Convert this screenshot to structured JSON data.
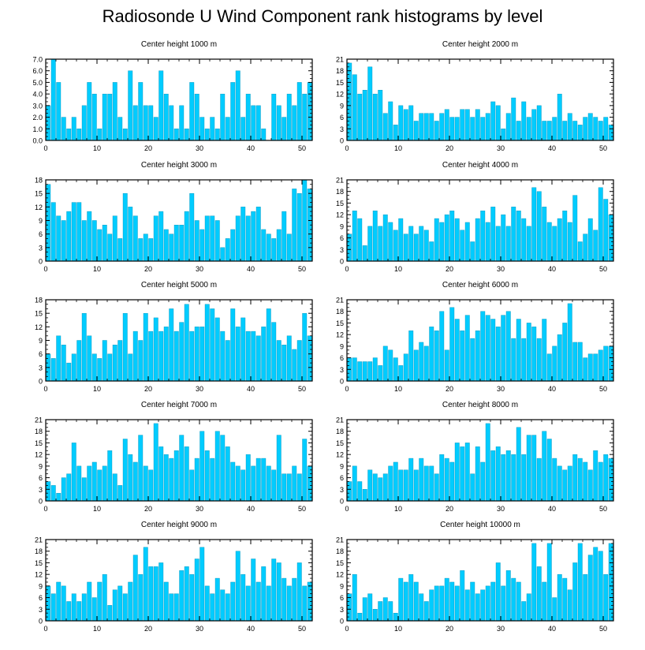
{
  "title": "Radiosonde U Wind Component rank histograms by level",
  "colors": {
    "bar": "#00ccff",
    "bar_edge": "#0090b8",
    "axis": "#000000"
  },
  "chart_data": [
    {
      "type": "bar",
      "title": "Center height 1000 m",
      "xlim": [
        0,
        52
      ],
      "ylim": [
        0,
        7
      ],
      "yticks": [
        0,
        1,
        2,
        3,
        4,
        5,
        6,
        7
      ],
      "ytick_labels": [
        "0.0",
        "1.0",
        "2.0",
        "3.0",
        "4.0",
        "5.0",
        "6.0",
        "7.0"
      ],
      "xticks": [
        0,
        10,
        20,
        30,
        40,
        50
      ],
      "xtick_labels": [
        "0",
        "10",
        "20",
        "30",
        "40",
        "50"
      ],
      "values": [
        3,
        7,
        5,
        2,
        1,
        2,
        1,
        3,
        5,
        4,
        1,
        4,
        4,
        5,
        2,
        1,
        6,
        3,
        5,
        3,
        3,
        2,
        6,
        4,
        3,
        1,
        3,
        1,
        5,
        4,
        2,
        1,
        2,
        1,
        4,
        2,
        5,
        6,
        2,
        4,
        3,
        3,
        1,
        0,
        4,
        3,
        2,
        4,
        3,
        5,
        4,
        5
      ]
    },
    {
      "type": "bar",
      "title": "Center height 2000 m",
      "xlim": [
        0,
        52
      ],
      "ylim": [
        0,
        21
      ],
      "yticks": [
        0,
        3,
        6,
        9,
        12,
        15,
        18,
        21
      ],
      "ytick_labels": [
        "0",
        "3",
        "6",
        "9",
        "12",
        "15",
        "18",
        "21"
      ],
      "xticks": [
        0,
        10,
        20,
        30,
        40,
        50
      ],
      "xtick_labels": [
        "0",
        "10",
        "20",
        "30",
        "40",
        "50"
      ],
      "values": [
        20,
        17,
        12,
        13,
        19,
        12,
        13,
        7,
        10,
        4,
        9,
        8,
        9,
        5,
        7,
        7,
        7,
        5,
        7,
        8,
        6,
        6,
        8,
        8,
        6,
        8,
        6,
        7,
        10,
        9,
        3,
        7,
        11,
        5,
        10,
        6,
        8,
        9,
        5,
        5,
        6,
        12,
        5,
        7,
        5,
        4,
        6,
        7,
        6,
        5,
        6,
        4
      ]
    },
    {
      "type": "bar",
      "title": "Center height 3000 m",
      "xlim": [
        0,
        52
      ],
      "ylim": [
        0,
        18
      ],
      "yticks": [
        0,
        3,
        6,
        9,
        12,
        15,
        18
      ],
      "ytick_labels": [
        "0",
        "3",
        "6",
        "9",
        "12",
        "15",
        "18"
      ],
      "xticks": [
        0,
        10,
        20,
        30,
        40,
        50
      ],
      "xtick_labels": [
        "0",
        "10",
        "20",
        "30",
        "40",
        "50"
      ],
      "values": [
        17,
        13,
        10,
        9,
        11,
        13,
        13,
        9,
        11,
        9,
        7,
        8,
        6,
        10,
        5,
        15,
        12,
        10,
        5,
        6,
        5,
        10,
        11,
        7,
        6,
        8,
        8,
        11,
        15,
        9,
        7,
        10,
        10,
        9,
        3,
        5,
        7,
        10,
        12,
        10,
        11,
        12,
        7,
        6,
        5,
        7,
        11,
        6,
        16,
        15,
        18,
        16
      ]
    },
    {
      "type": "bar",
      "title": "Center height 4000 m",
      "xlim": [
        0,
        52
      ],
      "ylim": [
        0,
        21
      ],
      "yticks": [
        0,
        3,
        6,
        9,
        12,
        15,
        18,
        21
      ],
      "ytick_labels": [
        "0",
        "3",
        "6",
        "9",
        "12",
        "15",
        "18",
        "21"
      ],
      "xticks": [
        0,
        10,
        20,
        30,
        40,
        50
      ],
      "xtick_labels": [
        "0",
        "10",
        "20",
        "30",
        "40",
        "50"
      ],
      "values": [
        7,
        13,
        11,
        4,
        9,
        13,
        9,
        12,
        10,
        8,
        11,
        7,
        9,
        7,
        9,
        8,
        5,
        11,
        10,
        12,
        13,
        11,
        8,
        10,
        5,
        11,
        13,
        10,
        14,
        9,
        12,
        9,
        14,
        13,
        11,
        9,
        19,
        18,
        14,
        10,
        9,
        11,
        13,
        10,
        17,
        5,
        7,
        11,
        8,
        19,
        16,
        12
      ]
    },
    {
      "type": "bar",
      "title": "Center height 5000 m",
      "xlim": [
        0,
        52
      ],
      "ylim": [
        0,
        18
      ],
      "yticks": [
        0,
        3,
        6,
        9,
        12,
        15,
        18
      ],
      "ytick_labels": [
        "0",
        "3",
        "6",
        "9",
        "12",
        "15",
        "18"
      ],
      "xticks": [
        0,
        10,
        20,
        30,
        40,
        50
      ],
      "xtick_labels": [
        "0",
        "10",
        "20",
        "30",
        "40",
        "50"
      ],
      "values": [
        6,
        5,
        10,
        8,
        4,
        6,
        9,
        15,
        10,
        6,
        5,
        9,
        6,
        8,
        9,
        15,
        6,
        11,
        9,
        15,
        11,
        14,
        11,
        12,
        16,
        11,
        13,
        17,
        11,
        12,
        12,
        17,
        16,
        14,
        11,
        9,
        16,
        12,
        14,
        11,
        11,
        10,
        12,
        16,
        13,
        9,
        8,
        10,
        7,
        9,
        15,
        10
      ]
    },
    {
      "type": "bar",
      "title": "Center height 6000 m",
      "xlim": [
        0,
        52
      ],
      "ylim": [
        0,
        21
      ],
      "yticks": [
        0,
        3,
        6,
        9,
        12,
        15,
        18,
        21
      ],
      "ytick_labels": [
        "0",
        "3",
        "6",
        "9",
        "12",
        "15",
        "18",
        "21"
      ],
      "xticks": [
        0,
        10,
        20,
        30,
        40,
        50
      ],
      "xtick_labels": [
        "0",
        "10",
        "20",
        "30",
        "40",
        "50"
      ],
      "values": [
        6,
        6,
        5,
        5,
        5,
        6,
        4,
        9,
        8,
        6,
        4,
        7,
        13,
        8,
        10,
        9,
        14,
        13,
        18,
        8,
        19,
        16,
        13,
        17,
        11,
        13,
        18,
        17,
        16,
        14,
        17,
        18,
        11,
        16,
        11,
        15,
        14,
        11,
        16,
        7,
        9,
        12,
        15,
        20,
        10,
        10,
        6,
        7,
        7,
        8,
        9,
        9
      ]
    },
    {
      "type": "bar",
      "title": "Center height 7000 m",
      "xlim": [
        0,
        52
      ],
      "ylim": [
        0,
        21
      ],
      "yticks": [
        0,
        3,
        6,
        9,
        12,
        15,
        18,
        21
      ],
      "ytick_labels": [
        "0",
        "3",
        "6",
        "9",
        "12",
        "15",
        "18",
        "21"
      ],
      "xticks": [
        0,
        10,
        20,
        30,
        40,
        50
      ],
      "xtick_labels": [
        "0",
        "10",
        "20",
        "30",
        "40",
        "50"
      ],
      "values": [
        5,
        4,
        2,
        6,
        7,
        15,
        9,
        6,
        9,
        10,
        8,
        9,
        13,
        7,
        4,
        16,
        12,
        10,
        17,
        9,
        8,
        20,
        14,
        12,
        11,
        13,
        17,
        14,
        8,
        11,
        18,
        13,
        11,
        18,
        17,
        14,
        10,
        9,
        8,
        12,
        9,
        11,
        11,
        9,
        8,
        17,
        7,
        7,
        9,
        7,
        16,
        9
      ]
    },
    {
      "type": "bar",
      "title": "Center height 8000 m",
      "xlim": [
        0,
        52
      ],
      "ylim": [
        0,
        21
      ],
      "yticks": [
        0,
        3,
        6,
        9,
        12,
        15,
        18,
        21
      ],
      "ytick_labels": [
        "0",
        "3",
        "6",
        "9",
        "12",
        "15",
        "18",
        "21"
      ],
      "xticks": [
        0,
        10,
        20,
        30,
        40,
        50
      ],
      "xtick_labels": [
        "0",
        "10",
        "20",
        "30",
        "40",
        "50"
      ],
      "values": [
        5,
        9,
        5,
        3,
        8,
        7,
        6,
        7,
        9,
        10,
        8,
        8,
        11,
        8,
        11,
        9,
        9,
        7,
        12,
        11,
        10,
        15,
        14,
        15,
        7,
        14,
        10,
        20,
        13,
        14,
        12,
        13,
        12,
        19,
        12,
        17,
        17,
        11,
        18,
        16,
        11,
        9,
        8,
        9,
        12,
        11,
        10,
        8,
        13,
        10,
        12,
        11
      ]
    },
    {
      "type": "bar",
      "title": "Center height 9000 m",
      "xlim": [
        0,
        52
      ],
      "ylim": [
        0,
        21
      ],
      "yticks": [
        0,
        3,
        6,
        9,
        12,
        15,
        18,
        21
      ],
      "ytick_labels": [
        "0",
        "3",
        "6",
        "9",
        "12",
        "15",
        "18",
        "21"
      ],
      "xticks": [
        0,
        10,
        20,
        30,
        40,
        50
      ],
      "xtick_labels": [
        "0",
        "10",
        "20",
        "30",
        "40",
        "50"
      ],
      "values": [
        9,
        7,
        10,
        9,
        5,
        7,
        5,
        7,
        10,
        6,
        10,
        12,
        4,
        8,
        9,
        7,
        10,
        17,
        12,
        19,
        14,
        14,
        15,
        10,
        7,
        7,
        13,
        14,
        12,
        16,
        19,
        9,
        7,
        11,
        8,
        7,
        10,
        18,
        12,
        9,
        16,
        10,
        14,
        9,
        16,
        15,
        11,
        9,
        11,
        15,
        9,
        10
      ]
    },
    {
      "type": "bar",
      "title": "Center height 10000 m",
      "xlim": [
        0,
        52
      ],
      "ylim": [
        0,
        21
      ],
      "yticks": [
        0,
        3,
        6,
        9,
        12,
        15,
        18,
        21
      ],
      "ytick_labels": [
        "0",
        "3",
        "6",
        "9",
        "12",
        "15",
        "18",
        "21"
      ],
      "xticks": [
        0,
        10,
        20,
        30,
        40,
        50
      ],
      "xtick_labels": [
        "0",
        "10",
        "20",
        "30",
        "40",
        "50"
      ],
      "values": [
        7,
        12,
        2,
        6,
        7,
        3,
        5,
        6,
        5,
        2,
        11,
        10,
        12,
        10,
        7,
        5,
        8,
        9,
        9,
        11,
        10,
        9,
        13,
        8,
        10,
        7,
        8,
        9,
        10,
        15,
        9,
        13,
        11,
        10,
        5,
        7,
        20,
        14,
        10,
        20,
        6,
        12,
        11,
        8,
        15,
        20,
        12,
        17,
        19,
        18,
        12,
        20
      ]
    }
  ]
}
